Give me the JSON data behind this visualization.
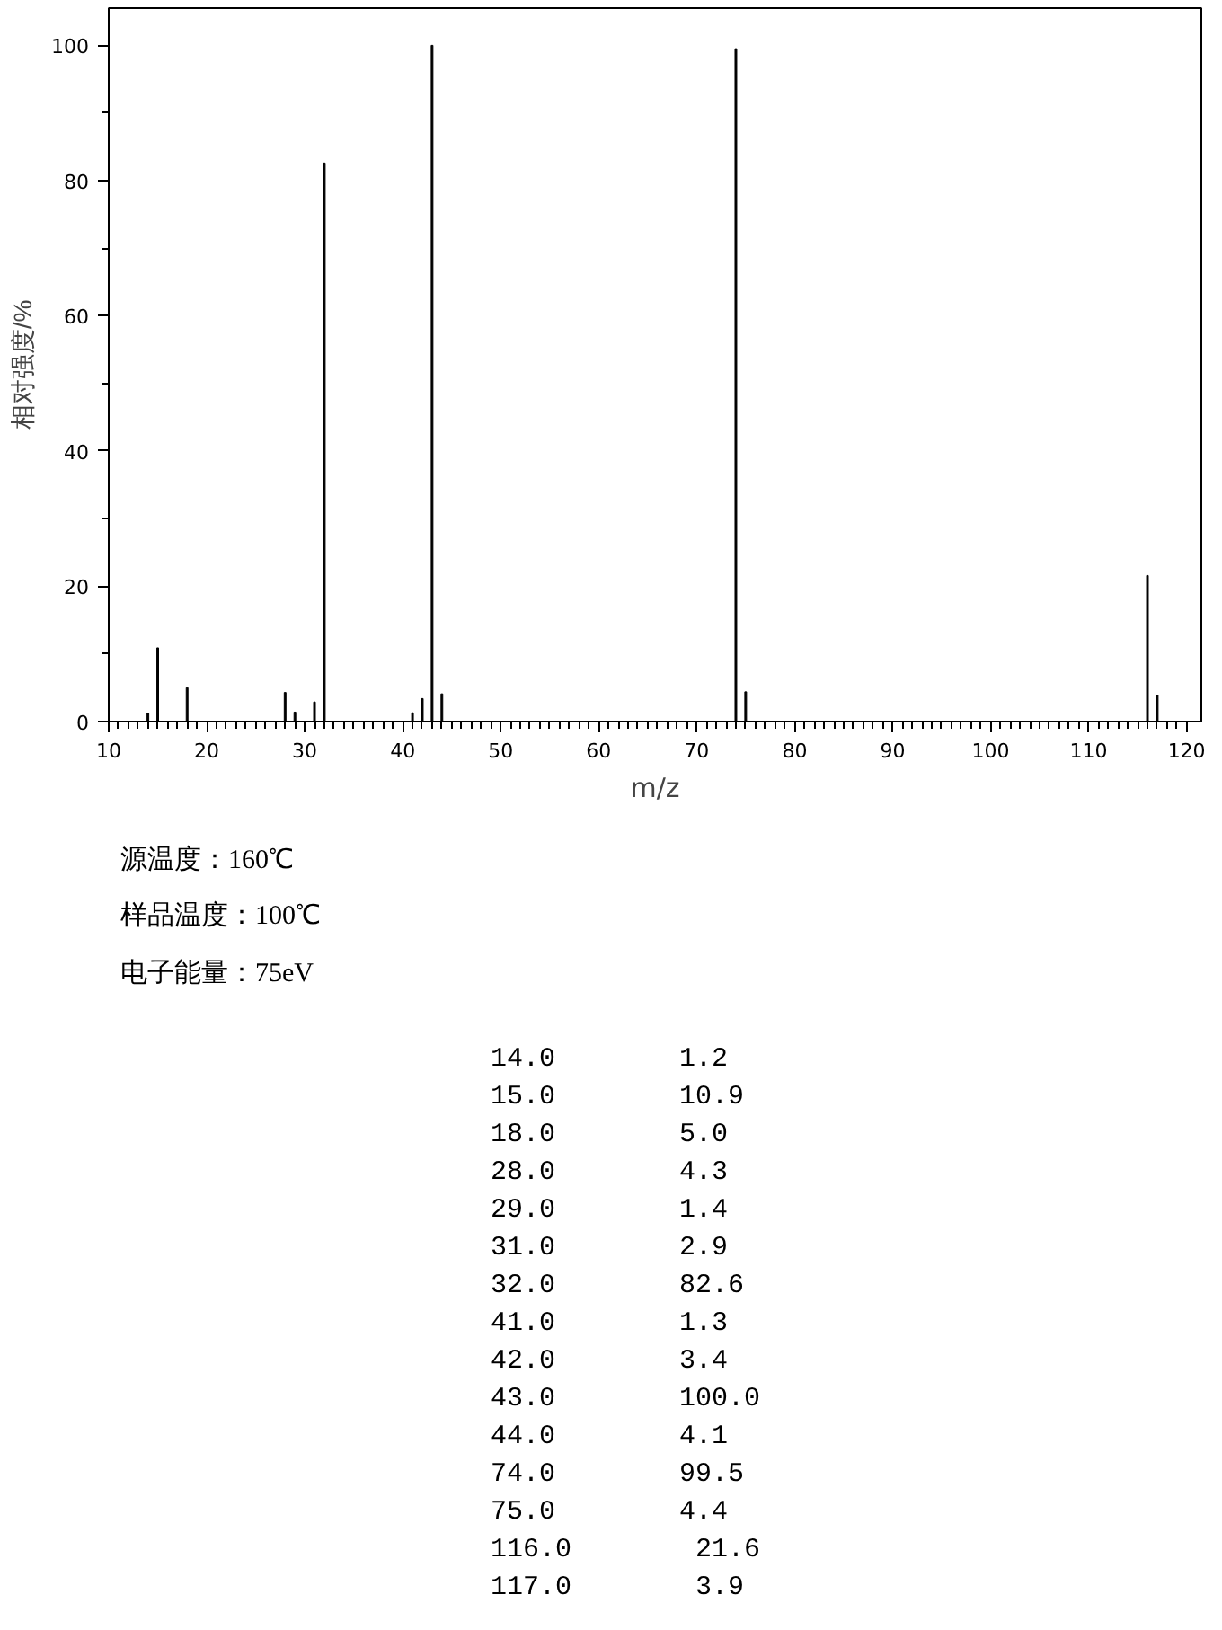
{
  "chart_data": {
    "type": "bar",
    "xlabel": "m/z",
    "ylabel": "相对强度/%",
    "x": [
      14.0,
      15.0,
      18.0,
      28.0,
      29.0,
      31.0,
      32.0,
      41.0,
      42.0,
      43.0,
      44.0,
      74.0,
      75.0,
      116.0,
      117.0
    ],
    "values": [
      1.2,
      10.9,
      5.0,
      4.3,
      1.4,
      2.9,
      82.6,
      1.3,
      3.4,
      100.0,
      4.1,
      99.5,
      4.4,
      21.6,
      3.9
    ],
    "color": "#000000",
    "xlim": [
      10,
      121.5
    ],
    "xticks": [
      10,
      20,
      30,
      40,
      50,
      60,
      70,
      80,
      90,
      100,
      110,
      120
    ],
    "ylim": [
      0,
      105.5
    ],
    "yticks": [
      0,
      20,
      40,
      60,
      80,
      100
    ],
    "grid": false,
    "annotations": [
      "源温度：160℃",
      "样品温度：100℃",
      "电子能量：75eV",
      "14.0 1.2",
      "15.0 10.9",
      "18.0 5.0",
      "28.0 4.3",
      "29.0 1.4",
      "31.0 2.9",
      "32.0 82.6",
      "41.0 1.3",
      "42.0 3.4",
      "43.0 100.0",
      "44.0 4.1",
      "74.0 99.5",
      "75.0 4.4",
      "116.0 21.6",
      "117.0 3.9"
    ]
  }
}
